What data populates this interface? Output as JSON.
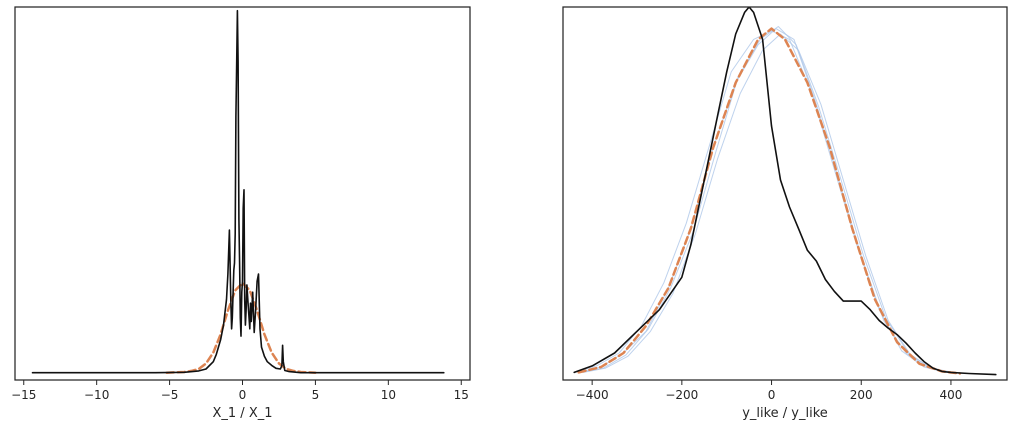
{
  "chart_data": [
    {
      "type": "line",
      "title": "",
      "xlabel": "X_1 / X_1",
      "ylabel": "",
      "xlim": [
        -15.6,
        15.6
      ],
      "ylim": [
        -0.02,
        1.0
      ],
      "xticks": [
        -15,
        -10,
        -5,
        0,
        5,
        10,
        15
      ],
      "xtick_labels": [
        "−15",
        "−10",
        "−5",
        "0",
        "5",
        "10",
        "15"
      ],
      "grid": false,
      "series": [
        {
          "kind": "observed",
          "color": "#111111",
          "style": "solid",
          "x": [
            -14.4,
            -6,
            -4,
            -3,
            -2.5,
            -2,
            -1.8,
            -1.5,
            -1.3,
            -1.1,
            -1.0,
            -0.9,
            -0.8,
            -0.75,
            -0.7,
            -0.6,
            -0.55,
            -0.5,
            -0.45,
            -0.4,
            -0.35,
            -0.3,
            -0.25,
            -0.2,
            -0.15,
            -0.1,
            -0.05,
            0.0,
            0.05,
            0.1,
            0.15,
            0.2,
            0.25,
            0.3,
            0.35,
            0.4,
            0.5,
            0.55,
            0.6,
            0.7,
            0.8,
            0.9,
            1.0,
            1.1,
            1.15,
            1.2,
            1.3,
            1.5,
            1.7,
            2.0,
            2.3,
            2.6,
            2.7,
            2.75,
            2.8,
            2.9,
            3.2,
            4,
            6,
            13.8
          ],
          "y": [
            0.0,
            0.0,
            0.001,
            0.005,
            0.01,
            0.03,
            0.05,
            0.09,
            0.13,
            0.2,
            0.27,
            0.39,
            0.2,
            0.12,
            0.15,
            0.28,
            0.3,
            0.38,
            0.7,
            0.85,
            0.99,
            0.85,
            0.42,
            0.3,
            0.15,
            0.1,
            0.22,
            0.25,
            0.45,
            0.5,
            0.2,
            0.13,
            0.17,
            0.24,
            0.21,
            0.18,
            0.12,
            0.19,
            0.14,
            0.22,
            0.11,
            0.17,
            0.25,
            0.27,
            0.19,
            0.12,
            0.07,
            0.045,
            0.03,
            0.02,
            0.012,
            0.01,
            0.02,
            0.075,
            0.03,
            0.006,
            0.003,
            0.0,
            0.0,
            0.0
          ]
        },
        {
          "kind": "posterior-predictive-mean",
          "color": "#dd8452",
          "style": "dashed",
          "x": [
            -5.2,
            -4,
            -3.5,
            -3,
            -2.5,
            -2.0,
            -1.5,
            -1.0,
            -0.5,
            0.0,
            0.5,
            1.0,
            1.5,
            2.0,
            2.5,
            3.0,
            3.5,
            4.0,
            5.0
          ],
          "y": [
            0.0,
            0.002,
            0.005,
            0.01,
            0.025,
            0.055,
            0.105,
            0.17,
            0.225,
            0.245,
            0.225,
            0.17,
            0.105,
            0.055,
            0.025,
            0.01,
            0.005,
            0.002,
            0.0
          ]
        }
      ]
    },
    {
      "type": "line",
      "title": "",
      "xlabel": "y_like / y_like",
      "ylabel": "",
      "xlim": [
        -465,
        525
      ],
      "ylim": [
        -5e-05,
        0.0034
      ],
      "xticks": [
        -400,
        -200,
        0,
        200,
        400
      ],
      "xtick_labels": [
        "−400",
        "−200",
        "0",
        "200",
        "400"
      ],
      "grid": false,
      "series": [
        {
          "kind": "observed",
          "color": "#111111",
          "style": "solid",
          "x": [
            -440,
            -400,
            -350,
            -300,
            -250,
            -200,
            -180,
            -160,
            -140,
            -120,
            -100,
            -80,
            -60,
            -50,
            -40,
            -20,
            0,
            20,
            40,
            60,
            80,
            100,
            120,
            140,
            160,
            180,
            200,
            220,
            240,
            260,
            280,
            300,
            320,
            340,
            360,
            380,
            400,
            440,
            500
          ],
          "y": [
            2e-05,
            8e-05,
            0.0002,
            0.0004,
            0.0006,
            0.0009,
            0.0012,
            0.0016,
            0.002,
            0.0024,
            0.0028,
            0.00315,
            0.00335,
            0.0034,
            0.00335,
            0.0031,
            0.0023,
            0.0018,
            0.00155,
            0.00135,
            0.00115,
            0.00105,
            0.00088,
            0.00077,
            0.00068,
            0.00068,
            0.00068,
            0.0006,
            0.0005,
            0.00043,
            0.00037,
            0.00029,
            0.0002,
            0.00012,
            6e-05,
            3e-05,
            2e-05,
            1e-05,
            0.0
          ]
        },
        {
          "kind": "posterior-predictive-draw",
          "color": "#aec7e8",
          "style": "solid",
          "x": [
            -430,
            -380,
            -330,
            -280,
            -230,
            -180,
            -130,
            -80,
            -30,
            10,
            50,
            100,
            150,
            200,
            250,
            300,
            350,
            400
          ],
          "y": [
            2e-05,
            7e-05,
            0.0002,
            0.0004,
            0.0008,
            0.00135,
            0.0021,
            0.0027,
            0.00305,
            0.0032,
            0.0031,
            0.0025,
            0.0018,
            0.0011,
            0.0005,
            0.0002,
            6e-05,
            2e-05
          ]
        },
        {
          "kind": "posterior-predictive-draw",
          "color": "#aec7e8",
          "style": "solid",
          "x": [
            -420,
            -370,
            -320,
            -270,
            -220,
            -170,
            -120,
            -70,
            -20,
            20,
            60,
            110,
            160,
            210,
            260,
            310,
            360,
            410
          ],
          "y": [
            2e-05,
            6e-05,
            0.00017,
            0.0004,
            0.00075,
            0.0013,
            0.002,
            0.0026,
            0.003,
            0.00315,
            0.003,
            0.0025,
            0.0018,
            0.0011,
            0.0005,
            0.00018,
            5e-05,
            1e-05
          ]
        },
        {
          "kind": "posterior-predictive-draw",
          "color": "#aec7e8",
          "style": "solid",
          "x": [
            -440,
            -390,
            -340,
            -290,
            -240,
            -190,
            -140,
            -90,
            -40,
            0,
            40,
            90,
            140,
            190,
            240,
            290,
            340,
            390
          ],
          "y": [
            2e-05,
            8e-05,
            0.0002,
            0.00045,
            0.00085,
            0.0014,
            0.0021,
            0.0028,
            0.0031,
            0.00318,
            0.0031,
            0.0026,
            0.0019,
            0.0012,
            0.0006,
            0.00022,
            7e-05,
            2e-05
          ]
        },
        {
          "kind": "posterior-predictive-draw",
          "color": "#aec7e8",
          "style": "solid",
          "x": [
            -425,
            -375,
            -325,
            -275,
            -225,
            -175,
            -125,
            -75,
            -25,
            15,
            55,
            105,
            155,
            205,
            255,
            305,
            355,
            405
          ],
          "y": [
            2e-05,
            6e-05,
            0.00018,
            0.00042,
            0.0008,
            0.00132,
            0.00205,
            0.00275,
            0.0031,
            0.00322,
            0.00305,
            0.00248,
            0.0018,
            0.0011,
            0.00052,
            0.0002,
            6e-05,
            2e-05
          ]
        },
        {
          "kind": "posterior-predictive-mean",
          "color": "#dd8452",
          "style": "dashed",
          "x": [
            -430,
            -380,
            -330,
            -280,
            -230,
            -180,
            -130,
            -80,
            -30,
            0,
            30,
            80,
            130,
            180,
            230,
            280,
            330,
            380,
            420
          ],
          "y": [
            2e-05,
            7e-05,
            0.0002,
            0.00045,
            0.0008,
            0.00135,
            0.0021,
            0.0027,
            0.0031,
            0.0032,
            0.0031,
            0.0027,
            0.0021,
            0.00135,
            0.0007,
            0.0003,
            0.0001,
            3e-05,
            1e-05
          ]
        }
      ]
    }
  ]
}
